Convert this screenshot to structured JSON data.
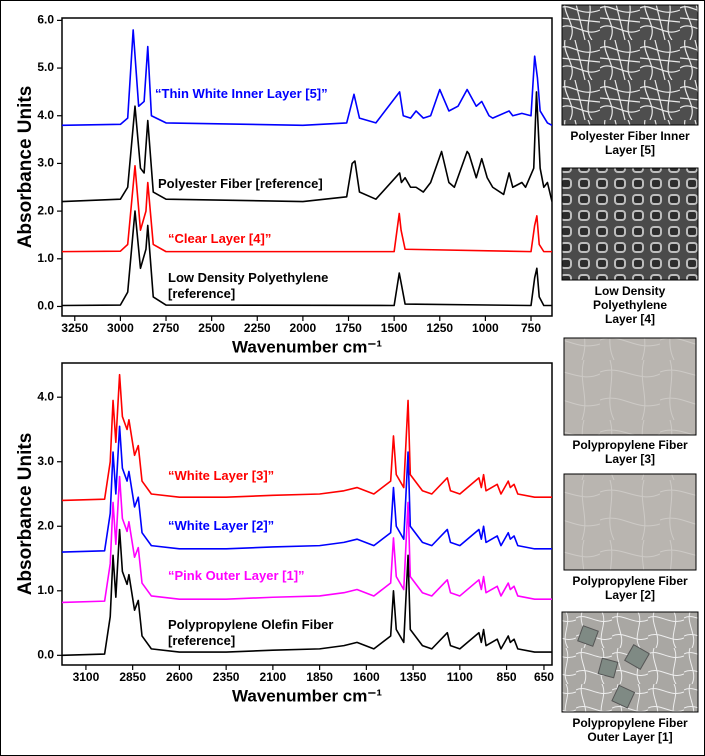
{
  "chart_data": [
    {
      "type": "line",
      "ylabel": "Absorbance Units",
      "xlabel": "Wavenumber cm⁻¹",
      "xlim": [
        3320,
        635
      ],
      "ylim": [
        -0.2,
        6.05
      ],
      "xticks": [
        3250,
        3000,
        2750,
        2500,
        2250,
        2000,
        1750,
        1500,
        1250,
        1000,
        750
      ],
      "yticks": [
        {
          "value": 0,
          "label": "0.0"
        },
        {
          "value": 1,
          "label": "1.0"
        },
        {
          "value": 2,
          "label": "2.0"
        },
        {
          "value": 3,
          "label": "3.0"
        },
        {
          "value": 4,
          "label": "4.0"
        },
        {
          "value": 5,
          "label": "5.0"
        },
        {
          "value": 6,
          "label": "6.0"
        }
      ],
      "series": [
        {
          "name": "“Thin White Inner Layer [5]”",
          "color": "#0000ff",
          "x": [
            3320,
            3000,
            2960,
            2930,
            2900,
            2870,
            2850,
            2830,
            2750,
            2000,
            1760,
            1720,
            1690,
            1600,
            1470,
            1450,
            1410,
            1380,
            1340,
            1300,
            1250,
            1200,
            1150,
            1100,
            1050,
            1020,
            980,
            960,
            870,
            850,
            800,
            750,
            730,
            715,
            700,
            660,
            635
          ],
          "values": [
            3.8,
            3.82,
            3.95,
            5.8,
            4.2,
            4.3,
            5.45,
            4.0,
            3.85,
            3.8,
            3.85,
            4.45,
            3.95,
            3.85,
            4.5,
            4.0,
            3.95,
            4.1,
            3.95,
            4.0,
            4.55,
            4.1,
            4.2,
            4.55,
            4.2,
            4.3,
            4.0,
            3.95,
            4.1,
            4.0,
            4.05,
            4.0,
            5.25,
            4.8,
            4.1,
            3.85,
            3.8
          ]
        },
        {
          "name": "Polyester Fiber [reference]",
          "color": "#000000",
          "x": [
            3320,
            3000,
            2960,
            2920,
            2890,
            2870,
            2850,
            2820,
            2750,
            2000,
            1760,
            1730,
            1715,
            1690,
            1600,
            1470,
            1460,
            1440,
            1410,
            1380,
            1340,
            1300,
            1240,
            1200,
            1170,
            1100,
            1090,
            1050,
            1020,
            990,
            960,
            900,
            870,
            850,
            800,
            780,
            735,
            720,
            700,
            680,
            660,
            635
          ],
          "values": [
            2.2,
            2.25,
            2.5,
            4.2,
            2.9,
            2.8,
            3.9,
            2.4,
            2.25,
            2.2,
            2.3,
            3.0,
            3.05,
            2.4,
            2.25,
            2.8,
            2.6,
            2.7,
            2.5,
            2.5,
            2.4,
            2.6,
            3.25,
            2.6,
            2.5,
            3.25,
            3.2,
            2.7,
            3.1,
            2.7,
            2.5,
            2.35,
            2.8,
            2.5,
            2.6,
            2.5,
            2.9,
            4.5,
            2.9,
            2.5,
            2.6,
            2.2
          ]
        },
        {
          "name": "“Clear Layer [4]”",
          "color": "#ff0000",
          "x": [
            3320,
            3000,
            2960,
            2920,
            2890,
            2860,
            2850,
            2820,
            2750,
            1500,
            1472,
            1462,
            1440,
            750,
            730,
            718,
            705,
            680,
            635
          ],
          "values": [
            1.15,
            1.16,
            1.3,
            2.95,
            1.6,
            2.0,
            2.6,
            1.3,
            1.15,
            1.15,
            1.95,
            1.6,
            1.2,
            1.15,
            1.7,
            1.9,
            1.3,
            1.15,
            1.15
          ]
        },
        {
          "name": "Low Density Polyethylene [reference]",
          "color": "#000000",
          "x": [
            3320,
            3000,
            2960,
            2920,
            2890,
            2860,
            2850,
            2820,
            2750,
            1500,
            1472,
            1462,
            1440,
            750,
            730,
            718,
            705,
            680,
            635
          ],
          "values": [
            0.02,
            0.03,
            0.3,
            2.0,
            0.8,
            1.2,
            1.7,
            0.2,
            0.03,
            0.02,
            0.7,
            0.5,
            0.05,
            0.02,
            0.6,
            0.8,
            0.2,
            0.02,
            0.02
          ]
        }
      ]
    },
    {
      "type": "line",
      "ylabel": "Absorbance Units",
      "xlabel": "Wavenumber cm⁻¹",
      "xlim": [
        3228,
        607
      ],
      "ylim": [
        -0.15,
        4.53
      ],
      "xticks": [
        3100,
        2850,
        2600,
        2350,
        2100,
        1850,
        1600,
        1350,
        1100,
        850,
        650
      ],
      "yticks": [
        {
          "value": 0,
          "label": "0.0"
        },
        {
          "value": 1,
          "label": "1.0"
        },
        {
          "value": 2,
          "label": "2.0"
        },
        {
          "value": 3,
          "label": "3.0"
        },
        {
          "value": 4,
          "label": "4.0"
        }
      ],
      "x": [
        3228,
        3000,
        2970,
        2955,
        2940,
        2920,
        2905,
        2880,
        2870,
        2840,
        2820,
        2800,
        2750,
        2600,
        2350,
        2100,
        1850,
        1720,
        1650,
        1560,
        1470,
        1455,
        1440,
        1400,
        1377,
        1365,
        1300,
        1250,
        1167,
        1150,
        1100,
        998,
        985,
        973,
        960,
        900,
        880,
        841,
        830,
        810,
        790,
        700,
        607
      ],
      "series": [
        {
          "name": "“White Layer [3]”",
          "color": "#ff0000",
          "values": [
            2.4,
            2.42,
            3.0,
            3.95,
            3.3,
            4.35,
            3.7,
            3.5,
            3.65,
            3.1,
            3.25,
            2.7,
            2.5,
            2.45,
            2.45,
            2.48,
            2.5,
            2.55,
            2.6,
            2.5,
            2.7,
            3.4,
            2.8,
            2.6,
            3.95,
            2.8,
            2.55,
            2.5,
            2.75,
            2.55,
            2.5,
            2.75,
            2.6,
            2.8,
            2.55,
            2.65,
            2.5,
            2.7,
            2.6,
            2.65,
            2.5,
            2.45,
            2.45
          ]
        },
        {
          "name": "“White Layer [2]”",
          "color": "#0000ff",
          "values": [
            1.6,
            1.62,
            2.2,
            3.15,
            2.5,
            3.55,
            2.9,
            2.7,
            2.85,
            2.3,
            2.45,
            1.9,
            1.7,
            1.65,
            1.65,
            1.68,
            1.7,
            1.75,
            1.8,
            1.7,
            1.9,
            2.6,
            2.0,
            1.8,
            3.15,
            2.0,
            1.75,
            1.7,
            1.95,
            1.75,
            1.7,
            1.95,
            1.8,
            2.0,
            1.75,
            1.85,
            1.7,
            1.9,
            1.8,
            1.85,
            1.7,
            1.65,
            1.65
          ]
        },
        {
          "name": "“Pink Outer Layer [1]”",
          "color": "#ff00ff",
          "values": [
            0.82,
            0.84,
            1.42,
            2.37,
            1.72,
            2.77,
            2.12,
            1.92,
            2.07,
            1.52,
            1.67,
            1.12,
            0.92,
            0.87,
            0.87,
            0.9,
            0.92,
            0.97,
            1.02,
            0.92,
            1.12,
            1.82,
            1.22,
            1.02,
            2.37,
            1.22,
            0.97,
            0.92,
            1.17,
            0.97,
            0.92,
            1.17,
            1.02,
            1.22,
            0.97,
            1.07,
            0.92,
            1.12,
            1.02,
            1.07,
            0.92,
            0.87,
            0.87
          ]
        },
        {
          "name": "Polypropylene Olefin Fiber [reference]",
          "color": "#000000",
          "values": [
            0,
            0.02,
            0.6,
            1.55,
            0.9,
            1.95,
            1.3,
            1.1,
            1.25,
            0.7,
            0.85,
            0.3,
            0.1,
            0.05,
            0.05,
            0.08,
            0.1,
            0.15,
            0.2,
            0.1,
            0.3,
            1.0,
            0.4,
            0.2,
            1.55,
            0.4,
            0.15,
            0.1,
            0.35,
            0.15,
            0.1,
            0.35,
            0.2,
            0.4,
            0.15,
            0.25,
            0.1,
            0.3,
            0.2,
            0.25,
            0.1,
            0.05,
            0.05
          ]
        }
      ]
    }
  ],
  "photo_panels": [
    {
      "caption": "Polyester Fiber Inner Layer [5]"
    },
    {
      "caption": "Low Density Polyethylene Layer [4]"
    },
    {
      "caption": "Polypropylene Fiber Layer [3]"
    },
    {
      "caption": "Polypropylene Fiber Layer [2]"
    },
    {
      "caption": "Polypropylene Fiber Outer Layer [1]"
    }
  ]
}
